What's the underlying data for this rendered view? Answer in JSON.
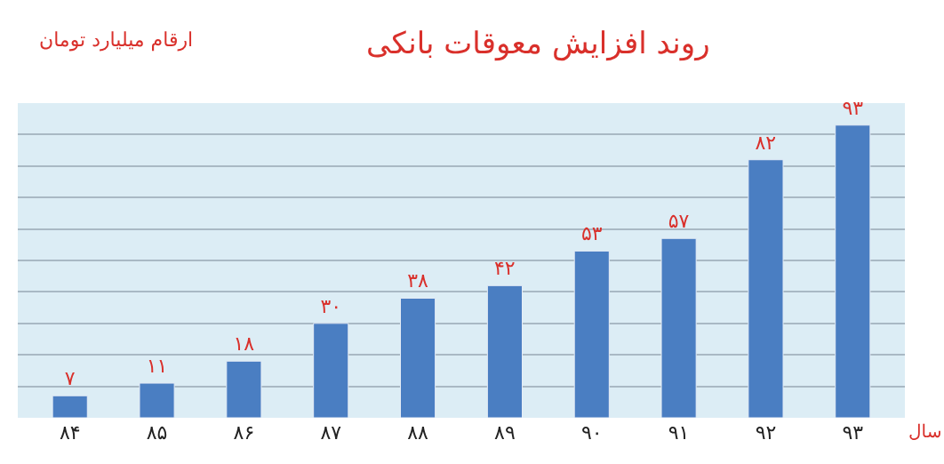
{
  "chart_data": {
    "type": "bar",
    "title": "روند افزایش معوقات بانکی",
    "subtitle": "ارقام میلیارد تومان",
    "xlabel": "سال",
    "categories": [
      "۸۴",
      "۸۵",
      "۸۶",
      "۸۷",
      "۸۸",
      "۸۹",
      "۹۰",
      "۹۱",
      "۹۲",
      "۹۳"
    ],
    "values": [
      7,
      11,
      18,
      30,
      38,
      42,
      53,
      57,
      82,
      93
    ],
    "value_labels": [
      "۷",
      "۱۱",
      "۱۸",
      "۳۰",
      "۳۸",
      "۴۲",
      "۵۳",
      "۵۷",
      "۸۲",
      "۹۳"
    ],
    "color": "#4a7ec2",
    "ylim": [
      0,
      100
    ],
    "yticks": [
      {
        "value": 0,
        "label": null
      },
      {
        "value": 10,
        "label": null
      },
      {
        "value": 20,
        "label": null
      },
      {
        "value": 30,
        "label": null
      },
      {
        "value": 40,
        "label": null
      },
      {
        "value": 50,
        "label": null
      },
      {
        "value": 60,
        "label": null
      },
      {
        "value": 70,
        "label": null
      },
      {
        "value": 80,
        "label": null
      },
      {
        "value": 90,
        "label": null
      },
      {
        "value": 100,
        "label": null
      }
    ],
    "grid": "y",
    "tick_labels": "x",
    "legend": false
  }
}
